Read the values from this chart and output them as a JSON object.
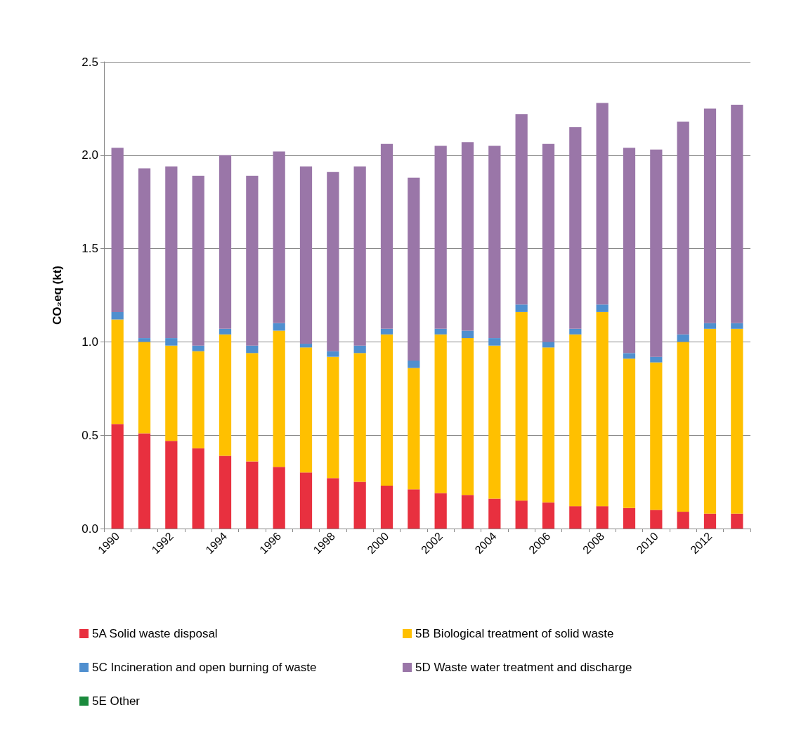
{
  "chart_data": {
    "type": "bar",
    "stacked": true,
    "ylabel": "CO₂eq (kt)",
    "categories": [
      "1990",
      null,
      "1992",
      null,
      "1994",
      null,
      "1996",
      null,
      "1998",
      null,
      "2000",
      null,
      "2002",
      null,
      "2004",
      null,
      "2006",
      null,
      "2008",
      null,
      "2010",
      null,
      "2012",
      null
    ],
    "series": [
      {
        "name": "5A Solid waste disposal",
        "color": "#e8303f",
        "values": [
          0.56,
          0.51,
          0.47,
          0.43,
          0.39,
          0.36,
          0.33,
          0.3,
          0.27,
          0.25,
          0.23,
          0.21,
          0.19,
          0.18,
          0.16,
          0.15,
          0.14,
          0.12,
          0.12,
          0.11,
          0.1,
          0.09,
          0.08,
          0.08
        ]
      },
      {
        "name": "5B Biological treatment of solid waste",
        "color": "#ffc000",
        "values": [
          0.56,
          0.49,
          0.51,
          0.52,
          0.65,
          0.58,
          0.73,
          0.67,
          0.65,
          0.69,
          0.81,
          0.65,
          0.85,
          0.84,
          0.82,
          1.01,
          0.83,
          0.92,
          1.04,
          0.8,
          0.79,
          0.91,
          0.99,
          0.99
        ]
      },
      {
        "name": "5C Incineration and open burning of waste",
        "color": "#4f8fcf",
        "values": [
          0.04,
          0.02,
          0.04,
          0.03,
          0.03,
          0.04,
          0.04,
          0.02,
          0.03,
          0.04,
          0.03,
          0.04,
          0.03,
          0.04,
          0.04,
          0.04,
          0.03,
          0.03,
          0.04,
          0.03,
          0.03,
          0.04,
          0.03,
          0.03
        ]
      },
      {
        "name": "5D Waste water treatment and discharge",
        "color": "#9a76a8",
        "values": [
          0.88,
          0.91,
          0.92,
          0.91,
          0.93,
          0.91,
          0.92,
          0.95,
          0.96,
          0.96,
          0.99,
          0.98,
          0.98,
          1.01,
          1.03,
          1.02,
          1.06,
          1.08,
          1.08,
          1.1,
          1.11,
          1.14,
          1.15,
          1.17
        ]
      },
      {
        "name": "5E Other",
        "color": "#1a8a3c",
        "values": [
          0,
          0,
          0,
          0,
          0,
          0,
          0,
          0,
          0,
          0,
          0,
          0,
          0,
          0,
          0,
          0,
          0,
          0,
          0,
          0,
          0,
          0,
          0,
          0
        ]
      }
    ],
    "ylim": [
      0,
      2.5
    ],
    "yticks": [
      {
        "value": 0,
        "label": "0.0"
      },
      {
        "value": 0.5,
        "label": "0.5"
      },
      {
        "value": 1,
        "label": "1.0"
      },
      {
        "value": 1.5,
        "label": "1.5"
      },
      {
        "value": 2,
        "label": "2.0"
      },
      {
        "value": 2.5,
        "label": "2.5"
      }
    ],
    "grid": "y",
    "legend": "bottom"
  }
}
